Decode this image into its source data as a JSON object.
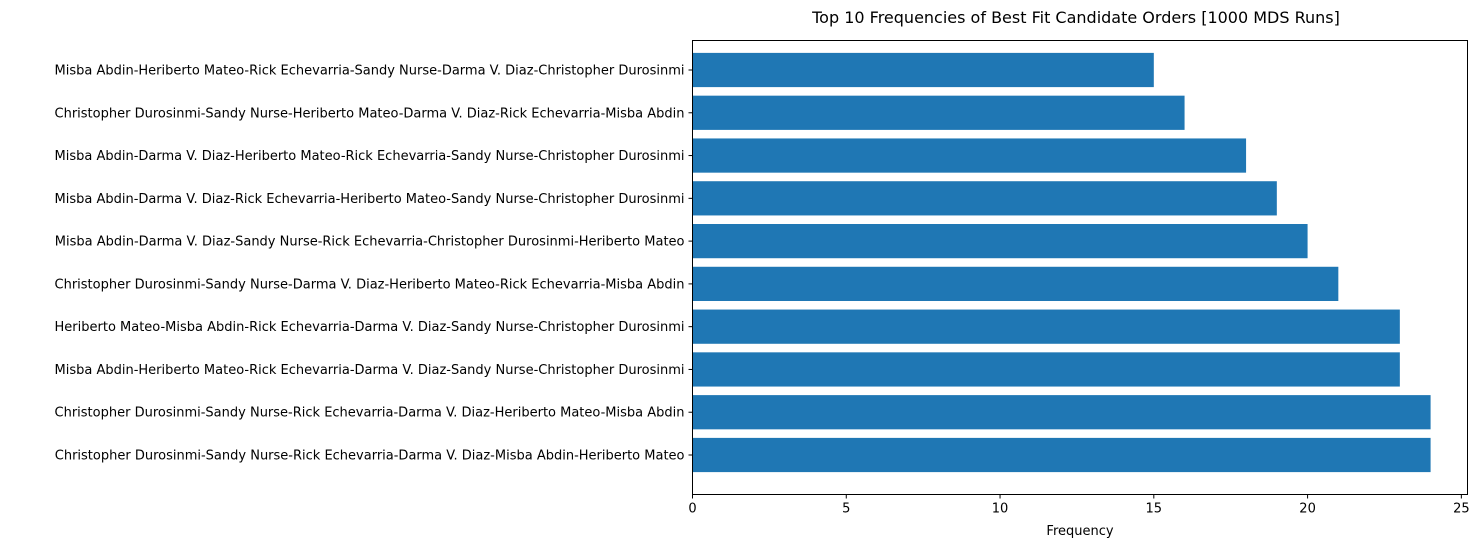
{
  "chart_data": {
    "type": "bar",
    "orientation": "horizontal",
    "title": "Top 10 Frequencies of Best Fit Candidate Orders [1000 MDS Runs]",
    "xlabel": "Frequency",
    "ylabel": "",
    "xlim": [
      0,
      25.2
    ],
    "xticks": [
      0,
      5,
      10,
      15,
      20,
      25
    ],
    "grid": false,
    "bar_color": "#1f77b4",
    "categories": [
      "Misba Abdin-Heriberto Mateo-Rick Echevarria-Sandy Nurse-Darma V. Diaz-Christopher Durosinmi",
      "Christopher Durosinmi-Sandy Nurse-Heriberto Mateo-Darma V. Diaz-Rick Echevarria-Misba Abdin",
      "Misba Abdin-Darma V. Diaz-Heriberto Mateo-Rick Echevarria-Sandy Nurse-Christopher Durosinmi",
      "Misba Abdin-Darma V. Diaz-Rick Echevarria-Heriberto Mateo-Sandy Nurse-Christopher Durosinmi",
      "Misba Abdin-Darma V. Diaz-Sandy Nurse-Rick Echevarria-Christopher Durosinmi-Heriberto Mateo",
      "Christopher Durosinmi-Sandy Nurse-Darma V. Diaz-Heriberto Mateo-Rick Echevarria-Misba Abdin",
      "Heriberto Mateo-Misba Abdin-Rick Echevarria-Darma V. Diaz-Sandy Nurse-Christopher Durosinmi",
      "Misba Abdin-Heriberto Mateo-Rick Echevarria-Darma V. Diaz-Sandy Nurse-Christopher Durosinmi",
      "Christopher Durosinmi-Sandy Nurse-Rick Echevarria-Darma V. Diaz-Heriberto Mateo-Misba Abdin",
      "Christopher Durosinmi-Sandy Nurse-Rick Echevarria-Darma V. Diaz-Misba Abdin-Heriberto Mateo"
    ],
    "values": [
      15,
      16,
      18,
      19,
      20,
      21,
      23,
      23,
      24,
      24
    ]
  }
}
